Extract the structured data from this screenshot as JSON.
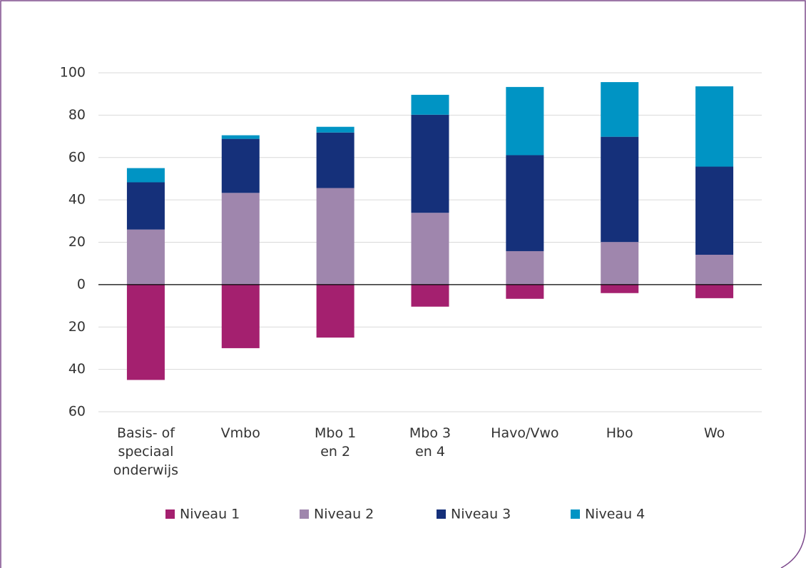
{
  "chart_data": {
    "type": "bar",
    "stacked": true,
    "categories": [
      "Basis- of\nspeciaal\nonderwijs",
      "Vmbo",
      "Mbo 1\nen 2",
      "Mbo 3\nen 4",
      "Havo/Vwo",
      "Hbo",
      "Wo"
    ],
    "series": [
      {
        "name": "Niveau 1",
        "color": "#a4206f",
        "values": [
          -45,
          -30,
          -25,
          -10.4,
          -6.7,
          -4,
          -6.4
        ]
      },
      {
        "name": "Niveau 2",
        "color": "#9f86ad",
        "values": [
          26,
          43.3,
          45.6,
          33.9,
          15.8,
          20.1,
          14.1
        ]
      },
      {
        "name": "Niveau 3",
        "color": "#15307a",
        "values": [
          22.3,
          25.5,
          26.2,
          46.3,
          45.3,
          49.7,
          41.6
        ]
      },
      {
        "name": "Niveau 4",
        "color": "#0094c4",
        "values": [
          6.7,
          1.7,
          2.7,
          9.4,
          32.2,
          25.8,
          37.9
        ]
      }
    ],
    "ylim": [
      -60,
      100
    ],
    "yticks": [
      {
        "value": -60,
        "label": "60"
      },
      {
        "value": -40,
        "label": "40"
      },
      {
        "value": -20,
        "label": "20"
      },
      0,
      20,
      40,
      60,
      80,
      100
    ],
    "grid": true,
    "legend": "bottom"
  }
}
